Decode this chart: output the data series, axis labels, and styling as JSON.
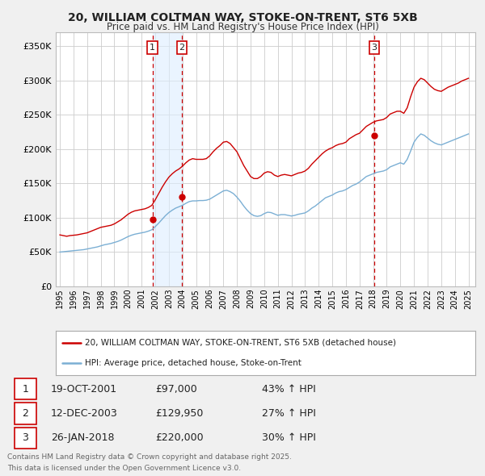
{
  "title_line1": "20, WILLIAM COLTMAN WAY, STOKE-ON-TRENT, ST6 5XB",
  "title_line2": "Price paid vs. HM Land Registry's House Price Index (HPI)",
  "ylabel_ticks": [
    "£0",
    "£50K",
    "£100K",
    "£150K",
    "£200K",
    "£250K",
    "£300K",
    "£350K"
  ],
  "ytick_values": [
    0,
    50000,
    100000,
    150000,
    200000,
    250000,
    300000,
    350000
  ],
  "ylim": [
    0,
    370000
  ],
  "xlim_start": 1994.7,
  "xlim_end": 2025.5,
  "bg_color": "#f0f0f0",
  "plot_bg": "#ffffff",
  "grid_color": "#cccccc",
  "red_line_color": "#cc0000",
  "blue_line_color": "#7bafd4",
  "sale_marker_color": "#cc0000",
  "vline_color": "#cc0000",
  "highlight_color": "#ddeeff",
  "purchases": [
    {
      "label": "1",
      "date": 2001.8,
      "price": 97000,
      "date_str": "19-OCT-2001",
      "price_str": "£97,000",
      "hpi_str": "43% ↑ HPI"
    },
    {
      "label": "2",
      "date": 2003.95,
      "price": 129950,
      "date_str": "12-DEC-2003",
      "price_str": "£129,950",
      "hpi_str": "27% ↑ HPI"
    },
    {
      "label": "3",
      "date": 2018.07,
      "price": 220000,
      "date_str": "26-JAN-2018",
      "price_str": "£220,000",
      "hpi_str": "30% ↑ HPI"
    }
  ],
  "legend_line1": "20, WILLIAM COLTMAN WAY, STOKE-ON-TRENT, ST6 5XB (detached house)",
  "legend_line2": "HPI: Average price, detached house, Stoke-on-Trent",
  "footer_line1": "Contains HM Land Registry data © Crown copyright and database right 2025.",
  "footer_line2": "This data is licensed under the Open Government Licence v3.0.",
  "hpi_red_data_x": [
    1995.0,
    1995.25,
    1995.5,
    1995.75,
    1996.0,
    1996.25,
    1996.5,
    1996.75,
    1997.0,
    1997.25,
    1997.5,
    1997.75,
    1998.0,
    1998.25,
    1998.5,
    1998.75,
    1999.0,
    1999.25,
    1999.5,
    1999.75,
    2000.0,
    2000.25,
    2000.5,
    2000.75,
    2001.0,
    2001.25,
    2001.5,
    2001.75,
    2002.0,
    2002.25,
    2002.5,
    2002.75,
    2003.0,
    2003.25,
    2003.5,
    2003.75,
    2004.0,
    2004.25,
    2004.5,
    2004.75,
    2005.0,
    2005.25,
    2005.5,
    2005.75,
    2006.0,
    2006.25,
    2006.5,
    2006.75,
    2007.0,
    2007.25,
    2007.5,
    2007.75,
    2008.0,
    2008.25,
    2008.5,
    2008.75,
    2009.0,
    2009.25,
    2009.5,
    2009.75,
    2010.0,
    2010.25,
    2010.5,
    2010.75,
    2011.0,
    2011.25,
    2011.5,
    2011.75,
    2012.0,
    2012.25,
    2012.5,
    2012.75,
    2013.0,
    2013.25,
    2013.5,
    2013.75,
    2014.0,
    2014.25,
    2014.5,
    2014.75,
    2015.0,
    2015.25,
    2015.5,
    2015.75,
    2016.0,
    2016.25,
    2016.5,
    2016.75,
    2017.0,
    2017.25,
    2017.5,
    2017.75,
    2018.0,
    2018.25,
    2018.5,
    2018.75,
    2019.0,
    2019.25,
    2019.5,
    2019.75,
    2020.0,
    2020.25,
    2020.5,
    2020.75,
    2021.0,
    2021.25,
    2021.5,
    2021.75,
    2022.0,
    2022.25,
    2022.5,
    2022.75,
    2023.0,
    2023.25,
    2023.5,
    2023.75,
    2024.0,
    2024.25,
    2024.5,
    2024.75,
    2025.0
  ],
  "hpi_red_data_y": [
    75000,
    74000,
    73000,
    74000,
    74500,
    75000,
    76000,
    77000,
    78000,
    80000,
    82000,
    84000,
    86000,
    87000,
    88000,
    89000,
    91000,
    94000,
    97000,
    101000,
    105000,
    108000,
    110000,
    111000,
    112000,
    113000,
    115000,
    118000,
    126000,
    135000,
    144000,
    152000,
    159000,
    164000,
    168000,
    171000,
    175000,
    180000,
    184000,
    186000,
    185000,
    185000,
    185000,
    186000,
    190000,
    196000,
    201000,
    205000,
    210000,
    211000,
    208000,
    202000,
    196000,
    186000,
    176000,
    168000,
    160000,
    157000,
    157000,
    160000,
    165000,
    167000,
    166000,
    162000,
    160000,
    162000,
    163000,
    162000,
    161000,
    163000,
    165000,
    166000,
    168000,
    172000,
    178000,
    183000,
    188000,
    193000,
    197000,
    200000,
    202000,
    205000,
    207000,
    208000,
    210000,
    215000,
    218000,
    221000,
    223000,
    228000,
    233000,
    236000,
    239000,
    241000,
    242000,
    243000,
    246000,
    251000,
    253000,
    255000,
    255000,
    252000,
    260000,
    276000,
    290000,
    298000,
    303000,
    301000,
    296000,
    291000,
    287000,
    285000,
    284000,
    287000,
    290000,
    292000,
    294000,
    296000,
    299000,
    301000,
    303000
  ],
  "hpi_blue_data_x": [
    1995.0,
    1995.25,
    1995.5,
    1995.75,
    1996.0,
    1996.25,
    1996.5,
    1996.75,
    1997.0,
    1997.25,
    1997.5,
    1997.75,
    1998.0,
    1998.25,
    1998.5,
    1998.75,
    1999.0,
    1999.25,
    1999.5,
    1999.75,
    2000.0,
    2000.25,
    2000.5,
    2000.75,
    2001.0,
    2001.25,
    2001.5,
    2001.75,
    2002.0,
    2002.25,
    2002.5,
    2002.75,
    2003.0,
    2003.25,
    2003.5,
    2003.75,
    2004.0,
    2004.25,
    2004.5,
    2004.75,
    2005.0,
    2005.25,
    2005.5,
    2005.75,
    2006.0,
    2006.25,
    2006.5,
    2006.75,
    2007.0,
    2007.25,
    2007.5,
    2007.75,
    2008.0,
    2008.25,
    2008.5,
    2008.75,
    2009.0,
    2009.25,
    2009.5,
    2009.75,
    2010.0,
    2010.25,
    2010.5,
    2010.75,
    2011.0,
    2011.25,
    2011.5,
    2011.75,
    2012.0,
    2012.25,
    2012.5,
    2012.75,
    2013.0,
    2013.25,
    2013.5,
    2013.75,
    2014.0,
    2014.25,
    2014.5,
    2014.75,
    2015.0,
    2015.25,
    2015.5,
    2015.75,
    2016.0,
    2016.25,
    2016.5,
    2016.75,
    2017.0,
    2017.25,
    2017.5,
    2017.75,
    2018.0,
    2018.25,
    2018.5,
    2018.75,
    2019.0,
    2019.25,
    2019.5,
    2019.75,
    2020.0,
    2020.25,
    2020.5,
    2020.75,
    2021.0,
    2021.25,
    2021.5,
    2021.75,
    2022.0,
    2022.25,
    2022.5,
    2022.75,
    2023.0,
    2023.25,
    2023.5,
    2023.75,
    2024.0,
    2024.25,
    2024.5,
    2024.75,
    2025.0
  ],
  "hpi_blue_data_y": [
    50000,
    50500,
    51000,
    51500,
    52000,
    52500,
    53000,
    53500,
    54500,
    55500,
    56500,
    57500,
    59000,
    60500,
    61500,
    62500,
    64000,
    65500,
    67500,
    70000,
    72500,
    74500,
    76000,
    77000,
    78000,
    79000,
    80500,
    82500,
    87000,
    92000,
    97500,
    103000,
    107500,
    111000,
    114000,
    116000,
    118000,
    121000,
    123500,
    124500,
    124500,
    125000,
    125000,
    125500,
    127000,
    130000,
    133000,
    136000,
    139000,
    140000,
    138000,
    135000,
    130000,
    124000,
    117000,
    111000,
    106000,
    103000,
    102000,
    103000,
    106000,
    108000,
    107500,
    105500,
    103500,
    104500,
    104500,
    103500,
    102500,
    103500,
    105000,
    106000,
    107000,
    110000,
    114000,
    117000,
    121000,
    125000,
    129000,
    131000,
    133000,
    136000,
    138000,
    139000,
    141000,
    144000,
    147000,
    149000,
    152000,
    156000,
    160000,
    162000,
    164000,
    166000,
    167000,
    168000,
    170000,
    174000,
    176000,
    178000,
    180000,
    178000,
    185000,
    197000,
    210000,
    217000,
    222000,
    220000,
    216000,
    212000,
    209000,
    207000,
    206000,
    208000,
    210000,
    212000,
    214000,
    216000,
    218000,
    220000,
    222000
  ]
}
